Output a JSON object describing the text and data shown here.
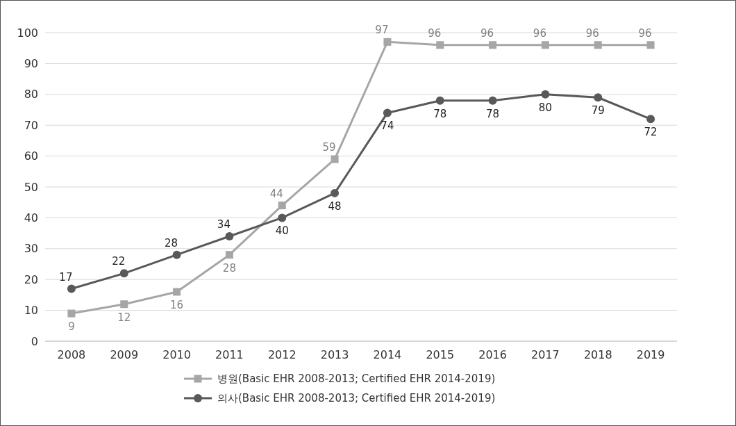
{
  "chart_data": {
    "type": "line",
    "categories": [
      "2008",
      "2009",
      "2010",
      "2011",
      "2012",
      "2013",
      "2014",
      "2015",
      "2016",
      "2017",
      "2018",
      "2019"
    ],
    "series": [
      {
        "name": "병원(Basic EHR 2008-2013; Certified EHR 2014-2019)",
        "color": "#a6a6a6",
        "marker": "square",
        "values": [
          9,
          12,
          16,
          28,
          44,
          59,
          97,
          96,
          96,
          96,
          96,
          96
        ]
      },
      {
        "name": "의사(Basic EHR 2008-2013; Certified EHR 2014-2019)",
        "color": "#595959",
        "marker": "circle",
        "values": [
          17,
          22,
          28,
          34,
          40,
          48,
          74,
          78,
          78,
          80,
          79,
          72
        ]
      }
    ],
    "ylim": [
      0,
      100
    ],
    "yticks": [
      0,
      10,
      20,
      30,
      40,
      50,
      60,
      70,
      80,
      90,
      100
    ],
    "grid": "y",
    "legend": "bottom",
    "data_labels": true,
    "line_style": "solid"
  }
}
